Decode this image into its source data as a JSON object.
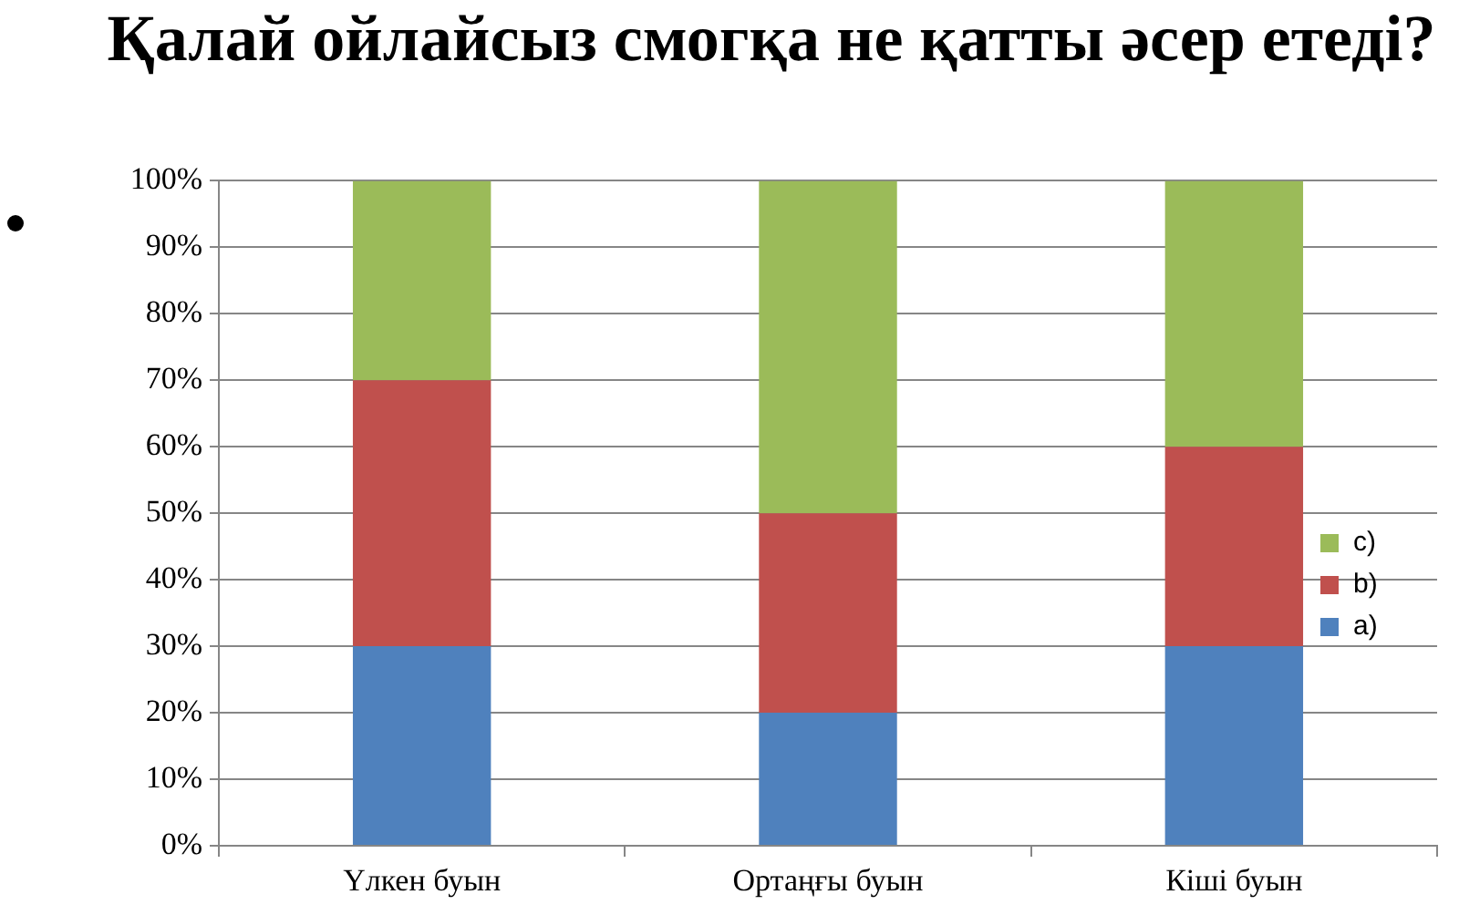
{
  "chart_data": {
    "type": "bar",
    "title": "Қалай ойлайсыз смогқа не қатты әсер етеді?",
    "categories": [
      "Үлкен буын",
      "Ортаңғы буын",
      "Кіші буын"
    ],
    "series": [
      {
        "name": "a)",
        "color": "#4f81bd",
        "values": [
          30,
          20,
          30
        ]
      },
      {
        "name": "b)",
        "color": "#c0504d",
        "values": [
          40,
          30,
          30
        ]
      },
      {
        "name": "c)",
        "color": "#9bbb59",
        "values": [
          30,
          50,
          40
        ]
      }
    ],
    "stacked": true,
    "ylim": [
      0,
      100
    ],
    "yticks": [
      {
        "value": 0,
        "label": "0%"
      },
      {
        "value": 10,
        "label": "10%"
      },
      {
        "value": 20,
        "label": "20%"
      },
      {
        "value": 30,
        "label": "30%"
      },
      {
        "value": 40,
        "label": "40%"
      },
      {
        "value": 50,
        "label": "50%"
      },
      {
        "value": 60,
        "label": "60%"
      },
      {
        "value": 70,
        "label": "70%"
      },
      {
        "value": 80,
        "label": "80%"
      },
      {
        "value": 90,
        "label": "90%"
      },
      {
        "value": 100,
        "label": "100%"
      }
    ],
    "grid": "y",
    "legend": "right"
  }
}
